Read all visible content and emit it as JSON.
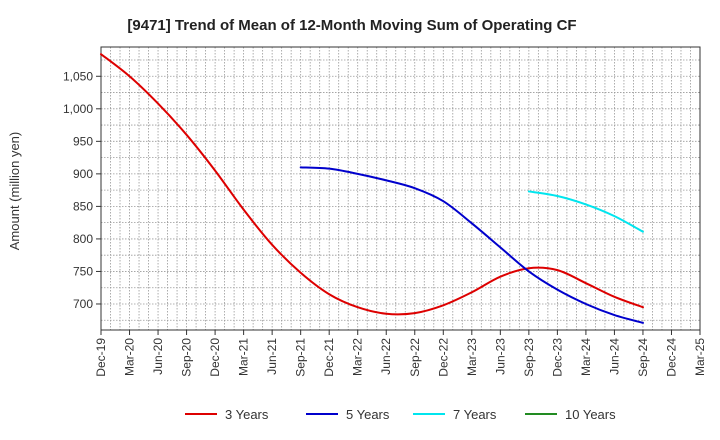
{
  "chart_data": {
    "type": "line",
    "title": "[9471]  Trend of Mean of 12-Month Moving Sum of Operating CF",
    "xlabel": "",
    "ylabel": "Amount (million yen)",
    "ylim": [
      660,
      1095
    ],
    "grid": true,
    "legend_position": "bottom",
    "categories": [
      "Dec-19",
      "Mar-20",
      "Jun-20",
      "Sep-20",
      "Dec-20",
      "Mar-21",
      "Jun-21",
      "Sep-21",
      "Dec-21",
      "Mar-22",
      "Jun-22",
      "Sep-22",
      "Dec-22",
      "Mar-23",
      "Jun-23",
      "Sep-23",
      "Dec-23",
      "Mar-24",
      "Jun-24",
      "Sep-24",
      "Dec-24",
      "Mar-25"
    ],
    "yticks": [
      700,
      750,
      800,
      850,
      900,
      950,
      1000,
      1050
    ],
    "ytick_labels": [
      "700",
      "750",
      "800",
      "850",
      "900",
      "950",
      "1,000",
      "1,050"
    ],
    "series": [
      {
        "name": "3 Years",
        "color": "#dd0000",
        "values": [
          1084,
          1050,
          1008,
          960,
          905,
          845,
          791,
          748,
          715,
          695,
          685,
          686,
          698,
          718,
          742,
          755,
          752,
          732,
          711,
          695,
          null,
          null
        ]
      },
      {
        "name": "5 Years",
        "color": "#0000cc",
        "values": [
          null,
          null,
          null,
          null,
          null,
          null,
          null,
          910,
          908,
          900,
          890,
          878,
          858,
          824,
          787,
          750,
          722,
          700,
          683,
          671,
          null,
          null
        ]
      },
      {
        "name": "7 Years",
        "color": "#00e5ee",
        "values": [
          null,
          null,
          null,
          null,
          null,
          null,
          null,
          null,
          null,
          null,
          null,
          null,
          null,
          null,
          null,
          873,
          866,
          853,
          835,
          811,
          null,
          null
        ]
      },
      {
        "name": "10 Years",
        "color": "#228b22",
        "values": [
          null,
          null,
          null,
          null,
          null,
          null,
          null,
          null,
          null,
          null,
          null,
          null,
          null,
          null,
          null,
          null,
          null,
          null,
          null,
          null,
          null,
          null
        ]
      }
    ]
  }
}
